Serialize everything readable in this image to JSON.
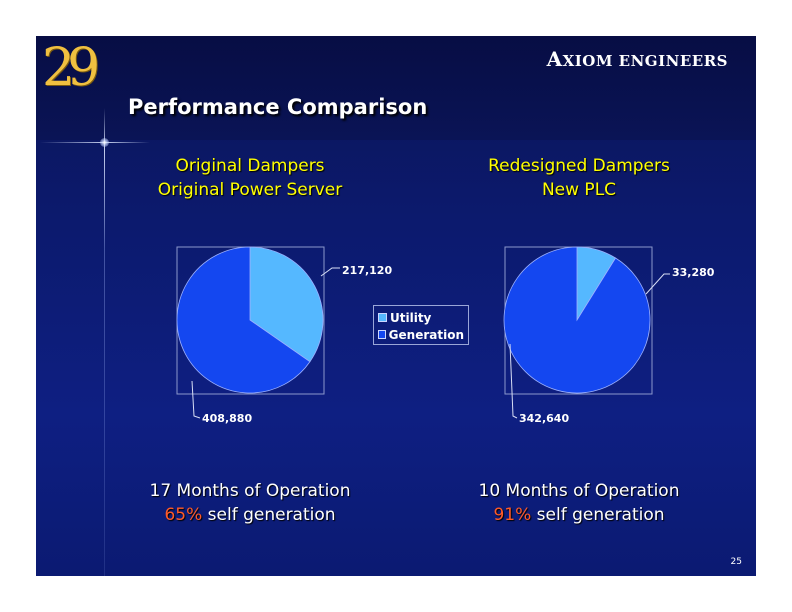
{
  "logo": {
    "text": "29"
  },
  "header": {
    "company_first": "A",
    "company_rest": "XIOM ENGINEERS"
  },
  "title": "Performance Comparison",
  "colors": {
    "utility": "#55b8ff",
    "generation": "#1447f0",
    "accent_pct": "#ff5a28",
    "subhead": "#ffff00"
  },
  "chart_data": [
    {
      "type": "pie",
      "title": [
        "Original Dampers",
        "Original Power Server"
      ],
      "categories": [
        "Utility",
        "Generation"
      ],
      "values": [
        217120,
        408880
      ],
      "labels": [
        "217,120",
        "408,880"
      ],
      "caption": {
        "line1": "17 Months of Operation",
        "pct": "65%",
        "rest": " self generation"
      }
    },
    {
      "type": "pie",
      "title": [
        "Redesigned Dampers",
        "New PLC"
      ],
      "categories": [
        "Utility",
        "Generation"
      ],
      "values": [
        33280,
        342640
      ],
      "labels": [
        "33,280",
        "342,640"
      ],
      "caption": {
        "line1": "10 Months of Operation",
        "pct": "91%",
        "rest": " self generation"
      }
    }
  ],
  "legend": {
    "items": [
      "Utility",
      "Generation"
    ],
    "placement": "center"
  },
  "page_number": "25"
}
